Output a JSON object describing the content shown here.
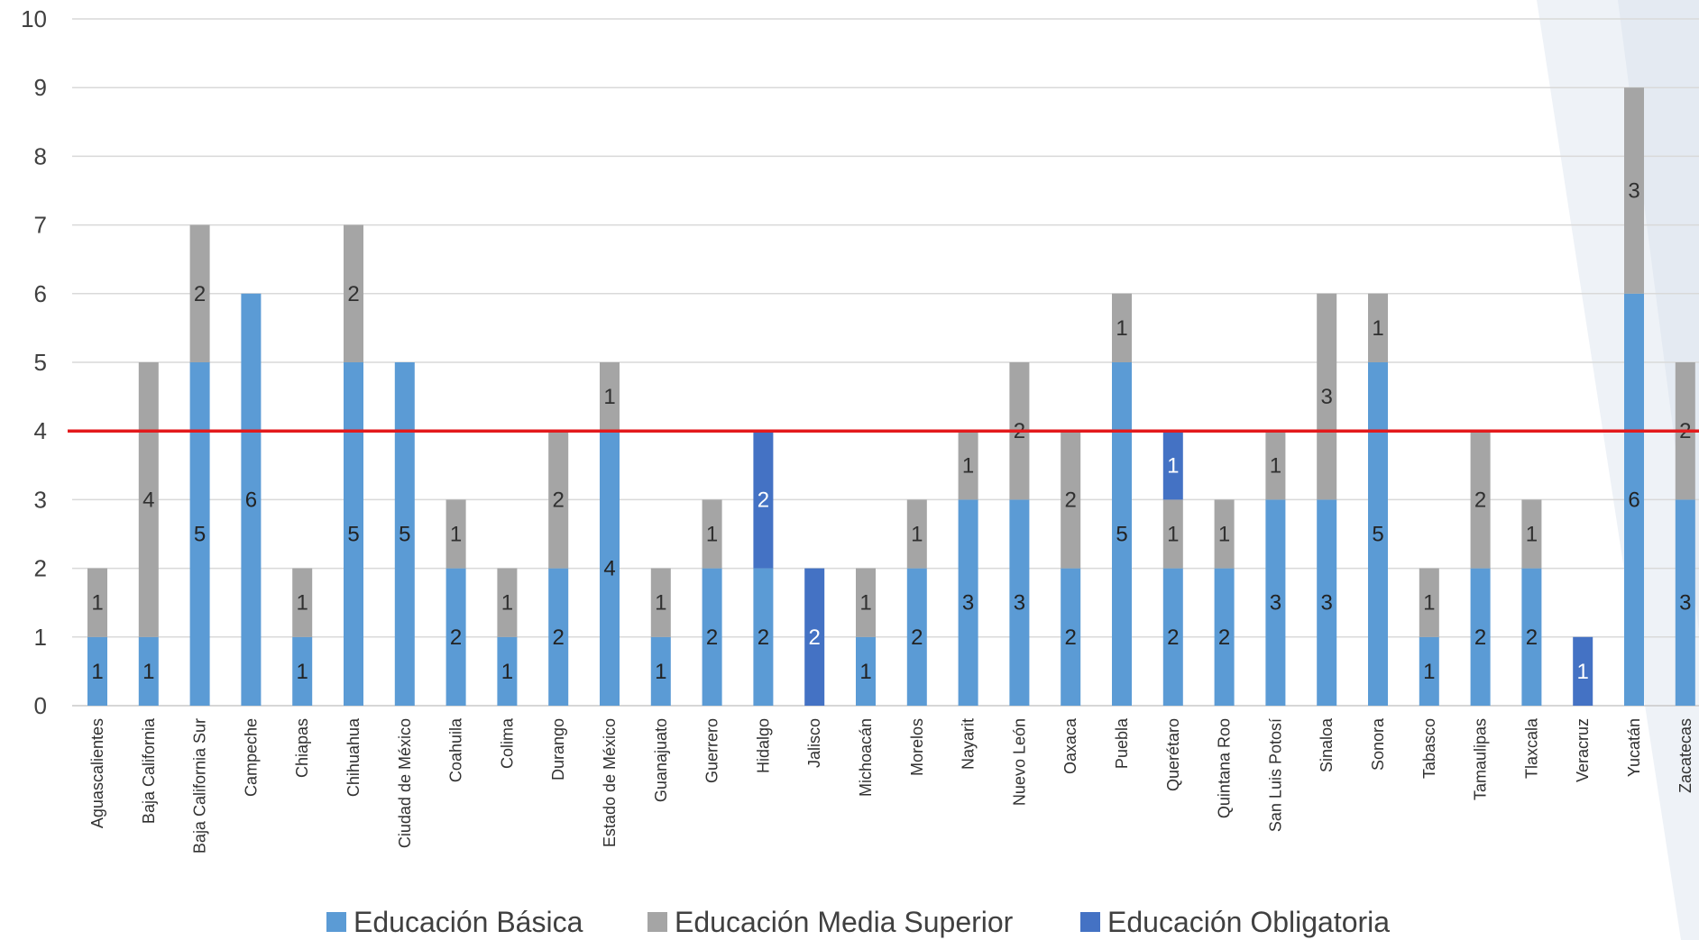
{
  "chart_data": {
    "type": "bar",
    "stacked": true,
    "categories": [
      "Aguascalientes",
      "Baja California",
      "Baja California Sur",
      "Campeche",
      "Chiapas",
      "Chihuahua",
      "Ciudad de México",
      "Coahuila",
      "Colima",
      "Durango",
      "Estado de México",
      "Guanajuato",
      "Guerrero",
      "Hidalgo",
      "Jalisco",
      "Michoacán",
      "Morelos",
      "Nayarit",
      "Nuevo León",
      "Oaxaca",
      "Puebla",
      "Querétaro",
      "Quintana Roo",
      "San Luis Potosí",
      "Sinaloa",
      "Sonora",
      "Tabasco",
      "Tamaulipas",
      "Tlaxcala",
      "Veracruz",
      "Yucatán",
      "Zacatecas"
    ],
    "series": [
      {
        "name": "Educación Básica",
        "color": "#5b9bd5",
        "values": [
          1,
          1,
          5,
          6,
          1,
          5,
          5,
          2,
          1,
          2,
          4,
          1,
          2,
          2,
          0,
          1,
          2,
          3,
          3,
          2,
          5,
          2,
          2,
          3,
          3,
          5,
          1,
          2,
          2,
          0,
          6,
          3
        ]
      },
      {
        "name": "Educación Media Superior",
        "color": "#a5a5a5",
        "values": [
          1,
          4,
          2,
          0,
          1,
          2,
          0,
          1,
          1,
          2,
          1,
          1,
          1,
          0,
          0,
          1,
          1,
          1,
          2,
          2,
          1,
          1,
          1,
          1,
          3,
          1,
          1,
          2,
          1,
          0,
          3,
          2
        ]
      },
      {
        "name": "Educación Obligatoria",
        "color": "#4472c4",
        "values": [
          0,
          0,
          0,
          0,
          0,
          0,
          0,
          0,
          0,
          0,
          0,
          0,
          0,
          2,
          2,
          0,
          0,
          0,
          0,
          0,
          0,
          1,
          0,
          0,
          0,
          0,
          0,
          0,
          0,
          1,
          0,
          0
        ]
      }
    ],
    "ylim": [
      0,
      10
    ],
    "yticks": [
      "0",
      "1",
      "2",
      "3",
      "4",
      "5",
      "6",
      "7",
      "8",
      "9",
      "10"
    ],
    "reference_line": {
      "value": 4,
      "color": "#e31a1c"
    },
    "grid": true,
    "legend_position": "bottom",
    "xlabel": "",
    "ylabel": "",
    "title": ""
  }
}
